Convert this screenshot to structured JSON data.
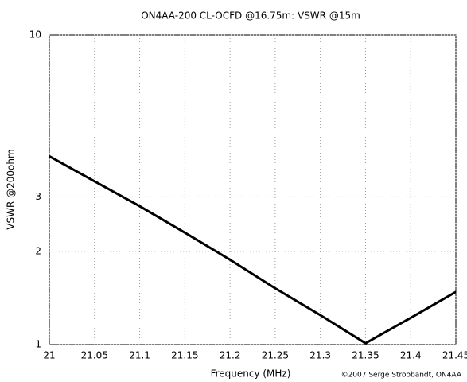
{
  "chart_data": {
    "type": "line",
    "title": "ON4AA-200 CL-OCFD @16.75m: VSWR @15m",
    "x_label": "Frequency (MHz)",
    "y_label": "VSWR @200ohm",
    "credit": "©2007 Serge Stroobandt, ON4AA",
    "x": [
      21,
      21.05,
      21.1,
      21.15,
      21.2,
      21.25,
      21.3,
      21.35,
      21.4,
      21.45
    ],
    "series": [
      {
        "name": "VSWR",
        "color": "#000000",
        "values": [
          4.06,
          3.37,
          2.8,
          2.3,
          1.88,
          1.52,
          1.245,
          1.01,
          1.22,
          1.48
        ]
      }
    ],
    "xlim": [
      21,
      21.45
    ],
    "xticks": [
      21,
      21.05,
      21.1,
      21.15,
      21.2,
      21.25,
      21.3,
      21.35,
      21.4,
      21.45
    ],
    "ylim": [
      1,
      10
    ],
    "yticks": [
      1,
      2,
      3,
      10
    ],
    "y_scale": "log",
    "grid": true
  }
}
